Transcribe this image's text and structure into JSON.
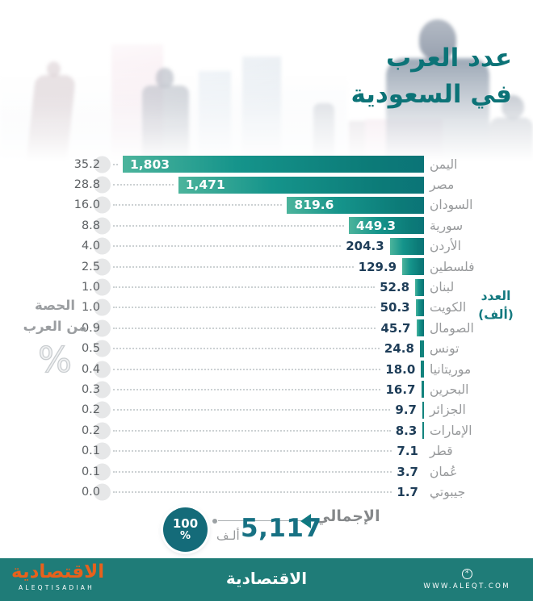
{
  "title": {
    "line1": "عدد العرب",
    "line2": "في السعودية"
  },
  "left_axis": {
    "line1": "الحصة",
    "line2": "من العرب",
    "symbol": "%"
  },
  "right_axis": {
    "line1": "العدد",
    "line2": "(ألف)"
  },
  "chart_data": {
    "type": "bar",
    "orientation": "horizontal-rtl",
    "title": "عدد العرب في السعودية",
    "xlabel": "العدد (ألف)",
    "secondary_label": "الحصة من العرب %",
    "xmax": 1803,
    "grid": "dotted-leader-lines",
    "categories": [
      "اليمن",
      "مصر",
      "السودان",
      "سورية",
      "الأردن",
      "فلسطين",
      "لبنان",
      "الكويت",
      "الصومال",
      "تونس",
      "موريتانيا",
      "البحرين",
      "الجزائر",
      "الإمارات",
      "قطر",
      "عُمان",
      "جيبوتي"
    ],
    "series": [
      {
        "name": "العدد (ألف)",
        "values": [
          1803,
          1471,
          819.6,
          449.3,
          204.3,
          129.9,
          52.8,
          50.3,
          45.7,
          24.8,
          18.0,
          16.7,
          9.7,
          8.3,
          7.1,
          3.7,
          1.7
        ]
      },
      {
        "name": "الحصة من العرب %",
        "values": [
          35.2,
          28.8,
          16.0,
          8.8,
          4.0,
          2.5,
          1.0,
          1.0,
          0.9,
          0.5,
          0.4,
          0.3,
          0.2,
          0.2,
          0.1,
          0.1,
          0.0
        ]
      }
    ],
    "value_labels": [
      "1,803",
      "1,471",
      "819.6",
      "449.3",
      "204.3",
      "129.9",
      "52.8",
      "50.3",
      "45.7",
      "24.8",
      "18.0",
      "16.7",
      "9.7",
      "8.3",
      "7.1",
      "3.7",
      "1.7"
    ],
    "percent_labels": [
      "35.2",
      "28.8",
      "16.0",
      "8.8",
      "4.0",
      "2.5",
      "1.0",
      "1.0",
      "0.9",
      "0.5",
      "0.4",
      "0.3",
      "0.2",
      "0.2",
      "0.1",
      "0.1",
      "0.0"
    ]
  },
  "total": {
    "label": "الإجمالي",
    "value": "5,117",
    "unit": "ألـف",
    "percent": "100",
    "percent_symbol": "%"
  },
  "footer": {
    "logo_arabic": "الاقتصادية",
    "logo_latin": "ALEQTISADIAH",
    "center_text": "الاقتصادية",
    "icon_glyph": "*",
    "website": "WWW.ALEQT.COM"
  },
  "colors": {
    "title_teal": "#0c7377",
    "bar_gradient_start": "#4cb49c",
    "bar_gradient_end": "#0b7477",
    "bar_solid": "#12837d",
    "value_navy": "#1e3d58",
    "country_gray": "#97999b",
    "percent_circle": "#e6e7e8",
    "footer_teal": "#1f7c78",
    "logo_orange": "#e8611c",
    "total_circle": "#146b79",
    "total_value": "#177183"
  }
}
